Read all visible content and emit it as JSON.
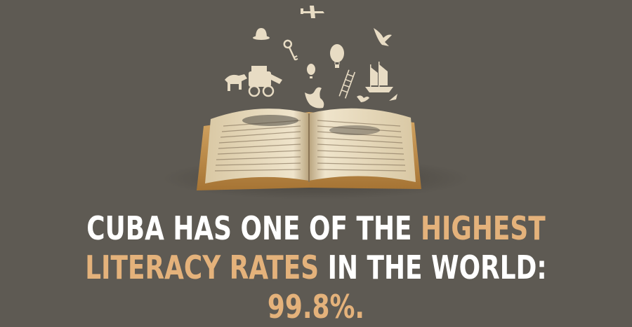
{
  "headline": {
    "line1_part1": "CUBA HAS ONE OF THE ",
    "line1_highlight": "HIGHEST",
    "line2_highlight": "LITERACY RATES",
    "line2_part2": " IN THE WORLD:",
    "line3_highlight": "99.8%",
    "line3_part2": "."
  },
  "colors": {
    "background": "#5e5a53",
    "text": "#ffffff",
    "accent": "#e4b27b",
    "paper": "#e8dcc4"
  },
  "illustration": {
    "icons": [
      "open-book-icon",
      "airplane-icon",
      "hat-icon",
      "key-icon",
      "balloon-icon",
      "hot-air-balloon-icon",
      "eagle-icon",
      "ship-icon",
      "horse-carriage-icon",
      "bird-icon",
      "ladder-icon",
      "goose-icon"
    ]
  }
}
